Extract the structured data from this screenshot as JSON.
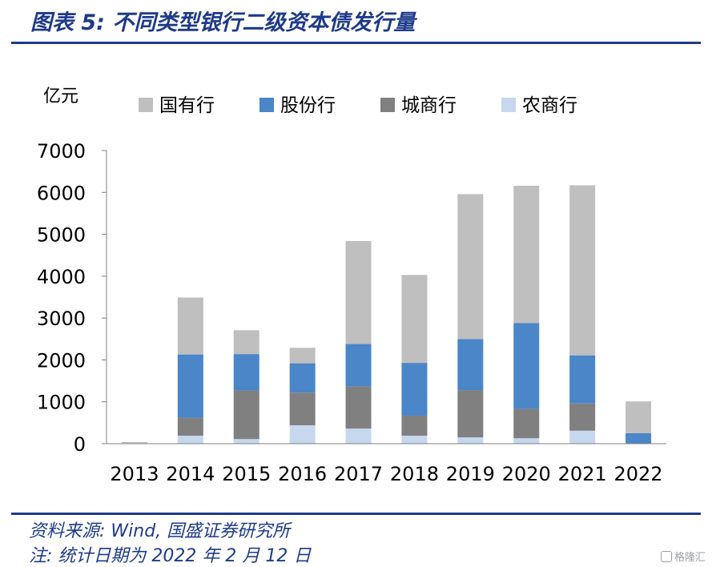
{
  "header": {
    "title": "图表 5:  不同类型银行二级资本债发行量"
  },
  "footer": {
    "source": "资料来源:  Wind,  国盛证券研究所",
    "note": "注:  统计日期为 2022 年 2 月 12 日"
  },
  "watermark": {
    "text": "格隆汇"
  },
  "chart_data": {
    "type": "bar",
    "stacked": true,
    "unit_label": "亿元",
    "categories": [
      "2013",
      "2014",
      "2015",
      "2016",
      "2017",
      "2018",
      "2019",
      "2020",
      "2021",
      "2022"
    ],
    "ylim": [
      0,
      7000
    ],
    "yticks": [
      0,
      1000,
      2000,
      3000,
      4000,
      5000,
      6000,
      7000
    ],
    "legend_position": "top",
    "grid": false,
    "series": [
      {
        "name": "农商行",
        "color": "#c6d7ee",
        "values": [
          20,
          190,
          110,
          440,
          360,
          190,
          150,
          130,
          310,
          0
        ]
      },
      {
        "name": "城商行",
        "color": "#808080",
        "values": [
          10,
          430,
          1160,
          780,
          1010,
          480,
          1130,
          700,
          650,
          10
        ]
      },
      {
        "name": "股份行",
        "color": "#4a86c8",
        "values": [
          0,
          1510,
          870,
          700,
          1010,
          1260,
          1220,
          2050,
          1150,
          240
        ]
      },
      {
        "name": "国有行",
        "color": "#bfbfbf",
        "values": [
          0,
          1360,
          570,
          370,
          2460,
          2100,
          3460,
          3280,
          4060,
          760
        ]
      }
    ],
    "legend_order": [
      "国有行",
      "股份行",
      "城商行",
      "农商行"
    ]
  }
}
